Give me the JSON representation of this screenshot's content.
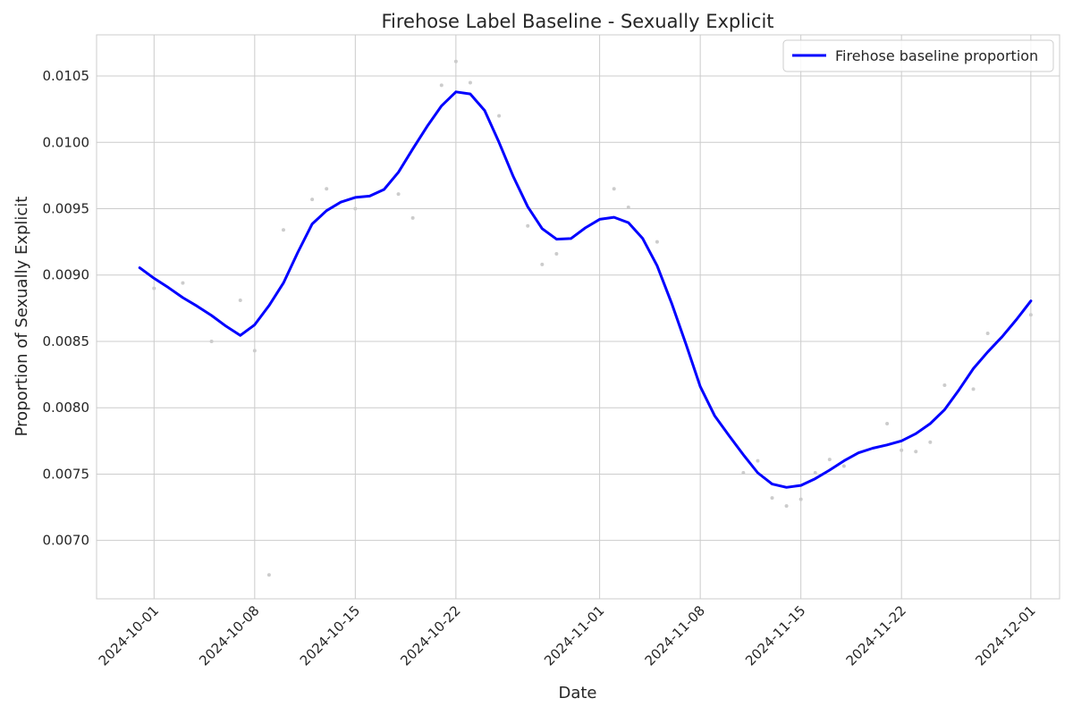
{
  "chart_data": {
    "type": "line",
    "title": "Firehose Label Baseline - Sexually Explicit",
    "xlabel": "Date",
    "ylabel": "Proportion of Sexually Explicit",
    "x_ticks": [
      "2024-10-01",
      "2024-10-08",
      "2024-10-15",
      "2024-10-22",
      "2024-11-01",
      "2024-11-08",
      "2024-11-15",
      "2024-11-22",
      "2024-12-01"
    ],
    "y_ticks": [
      "0.0070",
      "0.0075",
      "0.0080",
      "0.0085",
      "0.0090",
      "0.0095",
      "0.0100",
      "0.0105"
    ],
    "xlim": [
      "2024-09-27",
      "2024-12-03"
    ],
    "ylim": [
      0.00656,
      0.01081
    ],
    "grid": true,
    "legend_position": "top-right",
    "series": [
      {
        "name": "Firehose baseline proportion",
        "color": "#0000ff",
        "points": [
          [
            "2024-09-30",
            0.009055
          ],
          [
            "2024-10-01",
            0.008975
          ],
          [
            "2024-10-02",
            0.008905
          ],
          [
            "2024-10-03",
            0.00883
          ],
          [
            "2024-10-04",
            0.008765
          ],
          [
            "2024-10-05",
            0.008695
          ],
          [
            "2024-10-06",
            0.008615
          ],
          [
            "2024-10-07",
            0.008545
          ],
          [
            "2024-10-08",
            0.008625
          ],
          [
            "2024-10-09",
            0.00877
          ],
          [
            "2024-10-10",
            0.00894
          ],
          [
            "2024-10-11",
            0.00917
          ],
          [
            "2024-10-12",
            0.009385
          ],
          [
            "2024-10-13",
            0.009485
          ],
          [
            "2024-10-14",
            0.00955
          ],
          [
            "2024-10-15",
            0.009585
          ],
          [
            "2024-10-16",
            0.009595
          ],
          [
            "2024-10-17",
            0.009645
          ],
          [
            "2024-10-18",
            0.009775
          ],
          [
            "2024-10-19",
            0.00995
          ],
          [
            "2024-10-20",
            0.01012
          ],
          [
            "2024-10-21",
            0.010275
          ],
          [
            "2024-10-22",
            0.01038
          ],
          [
            "2024-10-23",
            0.010365
          ],
          [
            "2024-10-24",
            0.01024
          ],
          [
            "2024-10-25",
            0.01
          ],
          [
            "2024-10-26",
            0.00974
          ],
          [
            "2024-10-27",
            0.009515
          ],
          [
            "2024-10-28",
            0.00935
          ],
          [
            "2024-10-29",
            0.00927
          ],
          [
            "2024-10-30",
            0.009275
          ],
          [
            "2024-10-31",
            0.009355
          ],
          [
            "2024-11-01",
            0.00942
          ],
          [
            "2024-11-02",
            0.009435
          ],
          [
            "2024-11-03",
            0.009395
          ],
          [
            "2024-11-04",
            0.009275
          ],
          [
            "2024-11-05",
            0.00907
          ],
          [
            "2024-11-06",
            0.00879
          ],
          [
            "2024-11-07",
            0.00848
          ],
          [
            "2024-11-08",
            0.00816
          ],
          [
            "2024-11-09",
            0.00794
          ],
          [
            "2024-11-10",
            0.00779
          ],
          [
            "2024-11-11",
            0.007645
          ],
          [
            "2024-11-12",
            0.00751
          ],
          [
            "2024-11-13",
            0.007425
          ],
          [
            "2024-11-14",
            0.0074
          ],
          [
            "2024-11-15",
            0.007415
          ],
          [
            "2024-11-16",
            0.007465
          ],
          [
            "2024-11-17",
            0.00753
          ],
          [
            "2024-11-18",
            0.0076
          ],
          [
            "2024-11-19",
            0.00766
          ],
          [
            "2024-11-20",
            0.007695
          ],
          [
            "2024-11-21",
            0.00772
          ],
          [
            "2024-11-22",
            0.00775
          ],
          [
            "2024-11-23",
            0.007805
          ],
          [
            "2024-11-24",
            0.00788
          ],
          [
            "2024-11-25",
            0.007985
          ],
          [
            "2024-11-26",
            0.008135
          ],
          [
            "2024-11-27",
            0.008295
          ],
          [
            "2024-11-28",
            0.00842
          ],
          [
            "2024-11-29",
            0.008535
          ],
          [
            "2024-11-30",
            0.008665
          ],
          [
            "2024-12-01",
            0.008805
          ]
        ]
      },
      {
        "name": "",
        "color": "#cccccc",
        "marker": "dot",
        "points": [
          [
            "2024-10-01",
            0.0089
          ],
          [
            "2024-10-03",
            0.00894
          ],
          [
            "2024-10-05",
            0.0085
          ],
          [
            "2024-10-07",
            0.00881
          ],
          [
            "2024-10-08",
            0.00843
          ],
          [
            "2024-10-09",
            0.00674
          ],
          [
            "2024-10-10",
            0.00934
          ],
          [
            "2024-10-12",
            0.00957
          ],
          [
            "2024-10-13",
            0.00965
          ],
          [
            "2024-10-15",
            0.0095
          ],
          [
            "2024-10-18",
            0.00961
          ],
          [
            "2024-10-19",
            0.00943
          ],
          [
            "2024-10-21",
            0.01043
          ],
          [
            "2024-10-22",
            0.01061
          ],
          [
            "2024-10-23",
            0.01045
          ],
          [
            "2024-10-25",
            0.0102
          ],
          [
            "2024-10-27",
            0.00937
          ],
          [
            "2024-10-28",
            0.00908
          ],
          [
            "2024-10-29",
            0.00916
          ],
          [
            "2024-11-02",
            0.00965
          ],
          [
            "2024-11-03",
            0.00951
          ],
          [
            "2024-11-05",
            0.00925
          ],
          [
            "2024-11-11",
            0.00751
          ],
          [
            "2024-11-12",
            0.0076
          ],
          [
            "2024-11-13",
            0.00732
          ],
          [
            "2024-11-14",
            0.00726
          ],
          [
            "2024-11-15",
            0.00731
          ],
          [
            "2024-11-16",
            0.00751
          ],
          [
            "2024-11-17",
            0.00761
          ],
          [
            "2024-11-18",
            0.00756
          ],
          [
            "2024-11-21",
            0.00788
          ],
          [
            "2024-11-22",
            0.00768
          ],
          [
            "2024-11-23",
            0.00767
          ],
          [
            "2024-11-24",
            0.00774
          ],
          [
            "2024-11-25",
            0.00817
          ],
          [
            "2024-11-27",
            0.00814
          ],
          [
            "2024-11-28",
            0.00856
          ],
          [
            "2024-12-01",
            0.0087
          ]
        ]
      }
    ]
  }
}
